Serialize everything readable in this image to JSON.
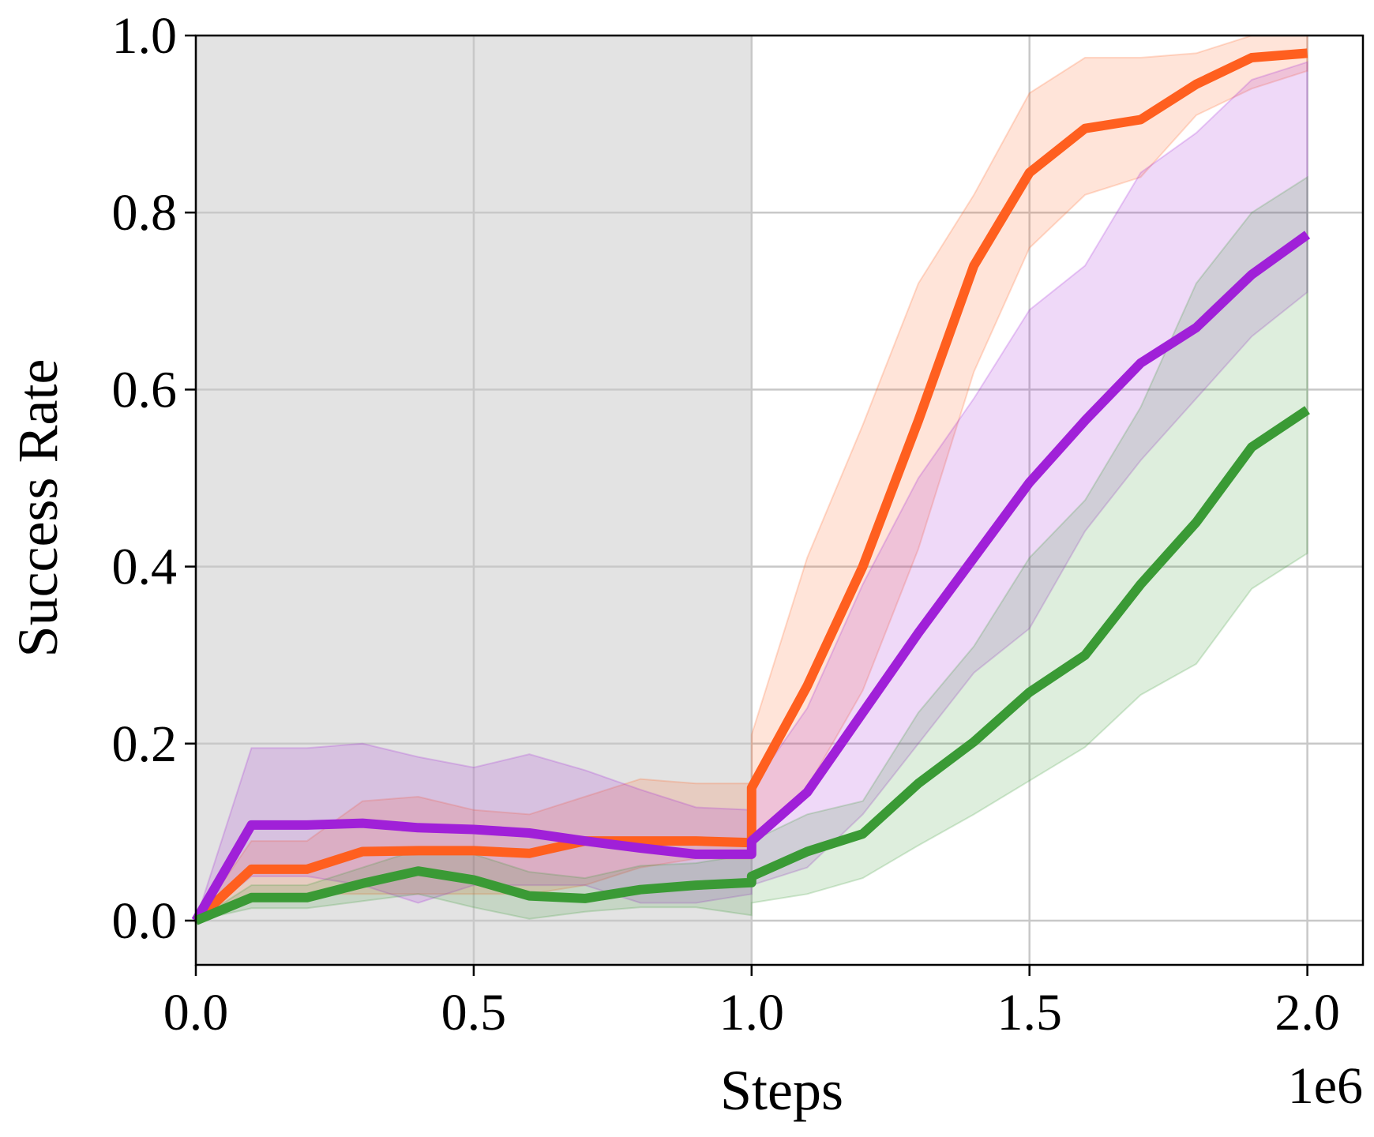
{
  "chart_data": {
    "type": "line",
    "title": "",
    "xlabel": "Steps",
    "ylabel": "Success Rate",
    "x_offset_label": "1e6",
    "xlim": [
      0.0,
      2.1
    ],
    "ylim": [
      -0.05,
      1.0
    ],
    "x_ticks": [
      "0.0",
      "0.5",
      "1.0",
      "1.5",
      "2.0"
    ],
    "y_ticks": [
      "0.0",
      "0.2",
      "0.4",
      "0.6",
      "0.8",
      "1.0"
    ],
    "grid": true,
    "legend": "none",
    "shaded_region": {
      "x_start": 0.0,
      "x_end": 1.0,
      "color": "#e3e3e3"
    },
    "series": [
      {
        "color": "#ff5f1f",
        "x": [
          0.0,
          0.1,
          0.2,
          0.3,
          0.4,
          0.5,
          0.6,
          0.7,
          0.8,
          0.9,
          1.0,
          1.0,
          1.1,
          1.2,
          1.3,
          1.4,
          1.5,
          1.6,
          1.7,
          1.8,
          1.9,
          2.0
        ],
        "y": [
          0.0,
          0.058,
          0.058,
          0.078,
          0.079,
          0.079,
          0.076,
          0.09,
          0.09,
          0.09,
          0.088,
          0.15,
          0.265,
          0.4,
          0.565,
          0.74,
          0.845,
          0.895,
          0.905,
          0.945,
          0.975,
          0.98
        ],
        "lower": [
          0.0,
          0.03,
          0.03,
          0.03,
          0.03,
          0.03,
          0.03,
          0.04,
          0.06,
          0.07,
          0.07,
          0.09,
          0.15,
          0.26,
          0.42,
          0.62,
          0.76,
          0.82,
          0.84,
          0.91,
          0.94,
          0.96
        ],
        "upper": [
          0.0,
          0.09,
          0.09,
          0.135,
          0.14,
          0.125,
          0.12,
          0.14,
          0.16,
          0.155,
          0.155,
          0.21,
          0.41,
          0.56,
          0.72,
          0.82,
          0.935,
          0.975,
          0.975,
          0.98,
          1.0,
          1.0
        ]
      },
      {
        "color": "#a020d8",
        "x": [
          0.0,
          0.1,
          0.2,
          0.3,
          0.4,
          0.5,
          0.6,
          0.7,
          0.8,
          0.9,
          1.0,
          1.0,
          1.1,
          1.2,
          1.3,
          1.4,
          1.5,
          1.6,
          1.7,
          1.8,
          1.9,
          2.0
        ],
        "y": [
          0.0,
          0.108,
          0.108,
          0.11,
          0.105,
          0.103,
          0.099,
          0.09,
          0.082,
          0.075,
          0.075,
          0.09,
          0.145,
          0.235,
          0.325,
          0.41,
          0.495,
          0.565,
          0.63,
          0.67,
          0.73,
          0.775
        ],
        "lower": [
          0.0,
          0.05,
          0.05,
          0.04,
          0.02,
          0.04,
          0.04,
          0.04,
          0.02,
          0.02,
          0.03,
          0.04,
          0.06,
          0.12,
          0.2,
          0.28,
          0.33,
          0.44,
          0.52,
          0.59,
          0.66,
          0.71
        ],
        "upper": [
          0.0,
          0.195,
          0.195,
          0.2,
          0.185,
          0.173,
          0.188,
          0.17,
          0.148,
          0.128,
          0.125,
          0.15,
          0.24,
          0.38,
          0.5,
          0.59,
          0.69,
          0.74,
          0.845,
          0.89,
          0.95,
          0.97
        ]
      },
      {
        "color": "#3a9a35",
        "x": [
          0.0,
          0.1,
          0.2,
          0.3,
          0.4,
          0.5,
          0.6,
          0.7,
          0.8,
          0.9,
          1.0,
          1.0,
          1.1,
          1.2,
          1.3,
          1.4,
          1.5,
          1.6,
          1.7,
          1.8,
          1.9,
          2.0
        ],
        "y": [
          0.0,
          0.026,
          0.026,
          0.042,
          0.056,
          0.046,
          0.028,
          0.025,
          0.035,
          0.04,
          0.043,
          0.05,
          0.078,
          0.098,
          0.155,
          0.202,
          0.258,
          0.3,
          0.38,
          0.45,
          0.535,
          0.577
        ],
        "lower": [
          0.0,
          0.014,
          0.014,
          0.022,
          0.03,
          0.015,
          0.002,
          0.01,
          0.015,
          0.015,
          0.006,
          0.02,
          0.03,
          0.048,
          0.085,
          0.12,
          0.158,
          0.196,
          0.255,
          0.29,
          0.375,
          0.415
        ],
        "upper": [
          0.0,
          0.04,
          0.04,
          0.06,
          0.08,
          0.075,
          0.055,
          0.048,
          0.062,
          0.065,
          0.075,
          0.09,
          0.12,
          0.135,
          0.235,
          0.31,
          0.41,
          0.475,
          0.58,
          0.72,
          0.8,
          0.84
        ]
      }
    ]
  }
}
